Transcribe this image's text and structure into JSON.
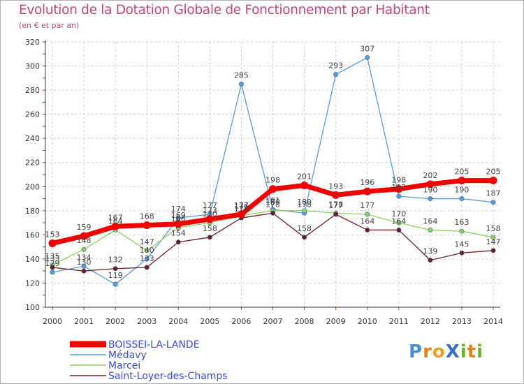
{
  "title": "Evolution de la Dotation Globale de Fonctionnement par Habitant",
  "subtitle": "(en € et par an)",
  "logo": {
    "text": "ProXiti",
    "letters": [
      "P",
      "r",
      "o",
      "X",
      "i",
      "t",
      "i"
    ],
    "colors": [
      "#4a8fd4",
      "#e8801a",
      "#f0a020",
      "#3a6fc4",
      "#6ab42a",
      "#e8801a",
      "#6ab42a"
    ]
  },
  "chart_data": {
    "type": "line",
    "title": "Evolution de la Dotation Globale de Fonctionnement par Habitant",
    "subtitle": "(en € et par an)",
    "xlabel": "",
    "ylabel": "",
    "x": [
      "2000",
      "2001",
      "2002",
      "2003",
      "2004",
      "2005",
      "2006",
      "2007",
      "2008",
      "2009",
      "2010",
      "2011",
      "2012",
      "2013",
      "2014"
    ],
    "ylim": [
      100,
      320
    ],
    "yticks": [
      100,
      120,
      140,
      160,
      180,
      200,
      220,
      240,
      260,
      280,
      300,
      320
    ],
    "grid": "horizontal dashed",
    "legend_position": "bottom-left",
    "series": [
      {
        "name": "Médavy",
        "color": "#5b9bd5",
        "values": [
          129,
          134,
          119,
          140,
          174,
          177,
          285,
          181,
          178,
          293,
          307,
          192,
          190,
          190,
          187
        ]
      },
      {
        "name": "Marcei",
        "color": "#90d060",
        "values": [
          135,
          148,
          164,
          147,
          166,
          170,
          176,
          180,
          180,
          178,
          177,
          170,
          164,
          163,
          158
        ]
      },
      {
        "name": "Saint-Loyer-des-Champs",
        "color": "#6b1f24",
        "values": [
          133,
          130,
          132,
          133,
          154,
          158,
          174,
          178,
          158,
          177,
          164,
          164,
          139,
          145,
          147
        ]
      },
      {
        "name": "BOISSEI-LA-LANDE",
        "color": "#ee0000",
        "values": [
          153,
          159,
          167,
          168,
          169,
          173,
          177,
          198,
          201,
          193,
          196,
          198,
          202,
          205,
          205
        ]
      }
    ],
    "data_labels": [
      {
        "series": "BOISSEI-LA-LANDE",
        "labels": [
          "153",
          "159",
          "167",
          "168",
          "169",
          "173",
          "177",
          "198",
          "201",
          "193",
          "196",
          "198",
          "202",
          "205",
          "205"
        ]
      },
      {
        "series": "Médavy",
        "labels": [
          "129",
          "134",
          "119",
          "140",
          "174",
          "177",
          "285",
          "181",
          "178",
          "293",
          "307",
          "192",
          "190",
          "190",
          "187"
        ]
      },
      {
        "series": "Marcei",
        "labels": [
          "135",
          "148",
          "164",
          "147",
          "166",
          "170",
          "176",
          "180",
          "180",
          "178",
          "177",
          "170",
          "164",
          "163",
          "158"
        ]
      },
      {
        "series": "Saint-Loyer-des-Champs",
        "labels": [
          "133",
          "130",
          "132",
          "133",
          "154",
          "158",
          "174",
          "178",
          "158",
          "177",
          "164",
          "164",
          "139",
          "145",
          "147"
        ]
      }
    ]
  }
}
